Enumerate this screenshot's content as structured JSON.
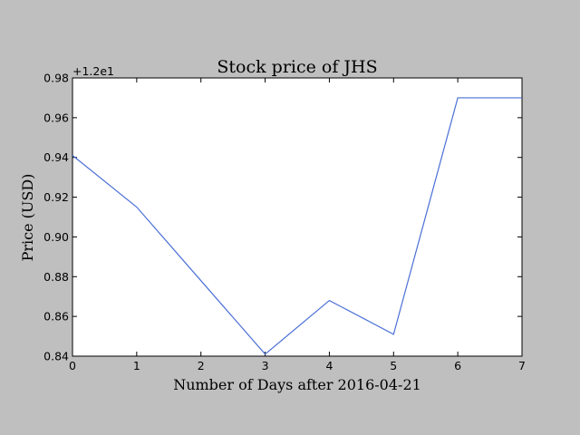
{
  "chart_data": {
    "type": "line",
    "title": "Stock price of JHS",
    "xlabel": "Number of Days after 2016-04-21",
    "ylabel": "Price (USD)",
    "offset_label": "+1.2e1",
    "x": [
      0,
      1,
      2,
      3,
      4,
      5,
      6,
      7
    ],
    "y": [
      0.941,
      0.915,
      0.878,
      0.841,
      0.868,
      0.851,
      0.97,
      0.97
    ],
    "xlim": [
      0,
      7
    ],
    "ylim": [
      0.84,
      0.98
    ],
    "xticks": [
      0,
      1,
      2,
      3,
      4,
      5,
      6,
      7
    ],
    "xtick_labels": [
      "0",
      "1",
      "2",
      "3",
      "4",
      "5",
      "6",
      "7"
    ],
    "yticks": [
      0.84,
      0.86,
      0.88,
      0.9,
      0.92,
      0.94,
      0.96,
      0.98
    ],
    "ytick_labels": [
      "0.84",
      "0.86",
      "0.88",
      "0.90",
      "0.92",
      "0.94",
      "0.96",
      "0.98"
    ],
    "grid": false,
    "line_color": "#4a6fd6",
    "background_color": "#bfbfbf",
    "plot_background": "#ffffff"
  }
}
